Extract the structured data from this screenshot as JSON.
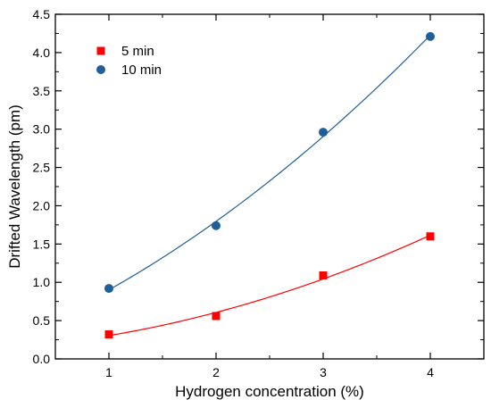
{
  "chart_data": {
    "type": "scatter",
    "title": "",
    "xlabel": "Hydrogen concentration (%)",
    "ylabel": "Drifted Wavelength (pm)",
    "xlim": [
      0.5,
      4.5
    ],
    "ylim": [
      0.0,
      4.5
    ],
    "xticks": [
      1,
      2,
      3,
      4
    ],
    "xtick_labels": [
      "1",
      "2",
      "3",
      "4"
    ],
    "yticks": [
      0.0,
      0.5,
      1.0,
      1.5,
      2.0,
      2.5,
      3.0,
      3.5,
      4.0,
      4.5
    ],
    "ytick_labels": [
      "0.0",
      "0.5",
      "1.0",
      "1.5",
      "2.0",
      "2.5",
      "3.0",
      "3.5",
      "4.0",
      "4.5"
    ],
    "grid": false,
    "legend": "top-left",
    "series": [
      {
        "name": "5 min",
        "marker": "square",
        "color": "#ff0000",
        "x": [
          1,
          2,
          3,
          4
        ],
        "y": [
          0.32,
          0.56,
          1.09,
          1.6
        ],
        "fit_curve": true
      },
      {
        "name": "10 min",
        "marker": "circle",
        "color": "#1f5f9a",
        "x": [
          1,
          2,
          3,
          4
        ],
        "y": [
          0.92,
          1.74,
          2.96,
          4.21
        ],
        "fit_curve": true
      }
    ]
  }
}
